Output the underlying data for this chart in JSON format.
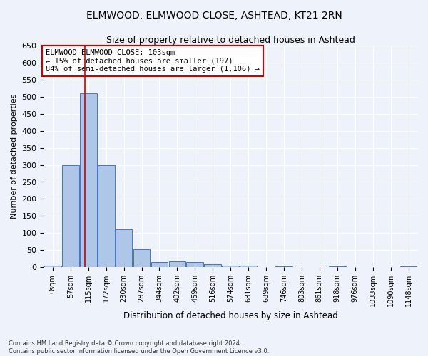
{
  "title_line1": "ELMWOOD, ELMWOOD CLOSE, ASHTEAD, KT21 2RN",
  "title_line2": "Size of property relative to detached houses in Ashtead",
  "xlabel": "Distribution of detached houses by size in Ashtead",
  "ylabel": "Number of detached properties",
  "bin_labels": [
    "0sqm",
    "57sqm",
    "115sqm",
    "172sqm",
    "230sqm",
    "287sqm",
    "344sqm",
    "402sqm",
    "459sqm",
    "516sqm",
    "574sqm",
    "631sqm",
    "689sqm",
    "746sqm",
    "803sqm",
    "861sqm",
    "918sqm",
    "976sqm",
    "1033sqm",
    "1090sqm",
    "1148sqm"
  ],
  "bar_values": [
    5,
    300,
    510,
    300,
    110,
    53,
    14,
    16,
    14,
    9,
    5,
    5,
    0,
    3,
    0,
    0,
    2,
    0,
    0,
    0,
    3
  ],
  "bar_color": "#aec6e8",
  "bar_edge_color": "#4472c4",
  "annotation_title": "ELMWOOD ELMWOOD CLOSE: 103sqm",
  "annotation_line1": "← 15% of detached houses are smaller (197)",
  "annotation_line2": "84% of semi-detached houses are larger (1,106) →",
  "vline_color": "#cc0000",
  "annotation_box_color": "#ffffff",
  "annotation_box_edge_color": "#cc0000",
  "ylim": [
    0,
    650
  ],
  "yticks": [
    0,
    50,
    100,
    150,
    200,
    250,
    300,
    350,
    400,
    450,
    500,
    550,
    600,
    650
  ],
  "footer_line1": "Contains HM Land Registry data © Crown copyright and database right 2024.",
  "footer_line2": "Contains public sector information licensed under the Open Government Licence v3.0.",
  "background_color": "#eef2fa",
  "grid_color": "#ffffff"
}
